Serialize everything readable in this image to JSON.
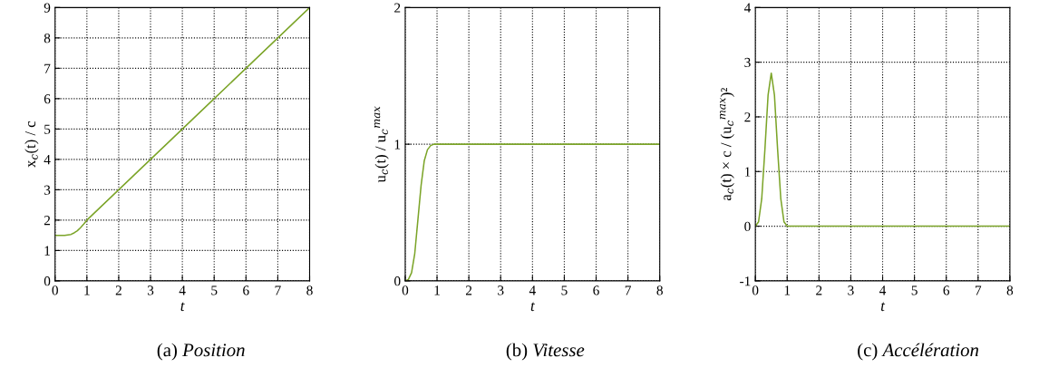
{
  "chart_data": [
    {
      "type": "line",
      "title": "(a) Position",
      "xlabel": "t",
      "ylabel": "x$_{c}$(t) / c",
      "xlim": [
        0,
        8
      ],
      "ylim": [
        0,
        9
      ],
      "xticks": [
        0,
        1,
        2,
        3,
        4,
        5,
        6,
        7,
        8
      ],
      "yticks": [
        0,
        1,
        2,
        3,
        4,
        5,
        6,
        7,
        8,
        9
      ],
      "grid": true,
      "series": [
        {
          "color": "#7ba428",
          "x": [
            0,
            0.3,
            0.5,
            0.6,
            0.7,
            0.8,
            0.9,
            1,
            2,
            3,
            4,
            5,
            6,
            7,
            8
          ],
          "values": [
            1.5,
            1.5,
            1.53,
            1.58,
            1.65,
            1.75,
            1.87,
            2,
            3,
            4,
            5,
            6,
            7,
            8,
            9
          ]
        }
      ]
    },
    {
      "type": "line",
      "title": "(b) Vitesse",
      "xlabel": "t",
      "ylabel": "u$_{c}$(t) / u$_{c}$$^{max}$",
      "xlim": [
        0,
        8
      ],
      "ylim": [
        0,
        2
      ],
      "xticks": [
        0,
        1,
        2,
        3,
        4,
        5,
        6,
        7,
        8
      ],
      "yticks": [
        0,
        1,
        2
      ],
      "grid": true,
      "series": [
        {
          "color": "#7ba428",
          "x": [
            0,
            0.1,
            0.2,
            0.3,
            0.4,
            0.5,
            0.6,
            0.7,
            0.8,
            0.9,
            1,
            8
          ],
          "values": [
            0,
            0.01,
            0.06,
            0.2,
            0.45,
            0.7,
            0.88,
            0.96,
            0.99,
            1,
            1,
            1
          ]
        }
      ]
    },
    {
      "type": "line",
      "title": "(c) Accélération",
      "xlabel": "t",
      "ylabel": "a$_{c}$(t) × c / (u$_{c}$$^{max}$)²",
      "xlim": [
        0,
        8
      ],
      "ylim": [
        -1,
        4
      ],
      "xticks": [
        0,
        1,
        2,
        3,
        4,
        5,
        6,
        7,
        8
      ],
      "yticks": [
        -1,
        0,
        1,
        2,
        3,
        4
      ],
      "grid": true,
      "series": [
        {
          "color": "#7ba428",
          "x": [
            0,
            0.1,
            0.2,
            0.3,
            0.4,
            0.5,
            0.6,
            0.7,
            0.8,
            0.9,
            1,
            8
          ],
          "values": [
            0,
            0.08,
            0.5,
            1.4,
            2.4,
            2.8,
            2.4,
            1.4,
            0.5,
            0.08,
            0,
            0
          ]
        }
      ]
    }
  ]
}
